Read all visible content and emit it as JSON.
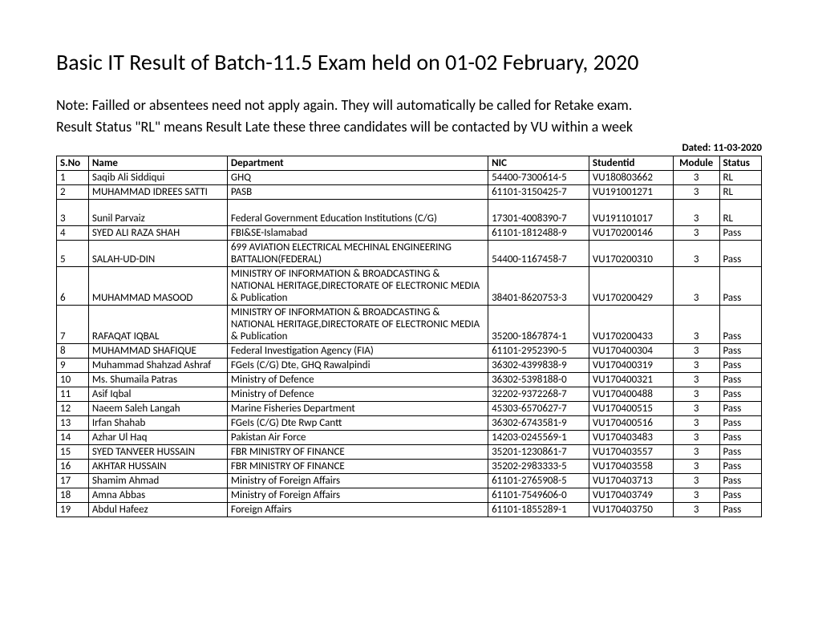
{
  "title": "Basic IT Result of Batch-11.5 Exam held on 01-02  February, 2020",
  "note_line1": "Note: Failled or absentees need not apply again.  They will automatically be called for Retake exam.",
  "note_line2": "Result Status  \"RL\" means Result Late these three candidates will be contacted by VU within a week",
  "dated_label": "Dated: 11-03-2020",
  "columns": {
    "sno": "S.No",
    "name": "Name",
    "department": "Department",
    "nic": "NIC",
    "studentid": "Studentid",
    "module": "Module",
    "status": "Status"
  },
  "rows": [
    {
      "sno": "1",
      "name": "Saqib Ali Siddiqui",
      "dept": "GHQ",
      "nic": "54400-7300614-5",
      "sid": "VU180803662",
      "module": "3",
      "status": "RL",
      "spacer_above": false,
      "tall": 0
    },
    {
      "sno": "2",
      "name": "MUHAMMAD IDREES SATTI",
      "dept": "PASB",
      "nic": "61101-3150425-7",
      "sid": "VU191001271",
      "module": "3",
      "status": "RL",
      "spacer_above": false,
      "tall": 0
    },
    {
      "sno": "3",
      "name": "Sunil Parvaiz",
      "dept": "Federal Government Education Institutions (C/G)",
      "nic": "17301-4008390-7",
      "sid": "VU191101017",
      "module": "3",
      "status": "RL",
      "spacer_above": true,
      "tall": 0
    },
    {
      "sno": "4",
      "name": "SYED ALI RAZA SHAH",
      "dept": "FBI&SE-Islamabad",
      "nic": "61101-1812488-9",
      "sid": "VU170200146",
      "module": "3",
      "status": "Pass",
      "spacer_above": false,
      "tall": 0
    },
    {
      "sno": "5",
      "name": "SALAH-UD-DIN",
      "dept": "699 AVIATION ELECTRICAL MECHINAL ENGINEERING BATTALION(FEDERAL)",
      "nic": "54400-1167458-7",
      "sid": "VU170200310",
      "module": "3",
      "status": "Pass",
      "spacer_above": false,
      "tall": 2
    },
    {
      "sno": "6",
      "name": "MUHAMMAD MASOOD",
      "dept": "MINISTRY OF INFORMATION & BROADCASTING & NATIONAL HERITAGE,DIRECTORATE OF ELECTRONIC MEDIA & Publication",
      "nic": "38401-8620753-3",
      "sid": "VU170200429",
      "module": "3",
      "status": "Pass",
      "spacer_above": false,
      "tall": 3
    },
    {
      "sno": "7",
      "name": "RAFAQAT IQBAL",
      "dept": "MINISTRY OF INFORMATION & BROADCASTING & NATIONAL HERITAGE,DIRECTORATE OF ELECTRONIC MEDIA & Publication",
      "nic": "35200-1867874-1",
      "sid": "VU170200433",
      "module": "3",
      "status": "Pass",
      "spacer_above": false,
      "tall": 3
    },
    {
      "sno": "8",
      "name": "MUHAMMAD SHAFIQUE",
      "dept": "Federal Investigation Agency (FIA)",
      "nic": "61101-2952390-5",
      "sid": "VU170400304",
      "module": "3",
      "status": "Pass",
      "spacer_above": false,
      "tall": 0
    },
    {
      "sno": "9",
      "name": "Muhammad Shahzad Ashraf",
      "dept": "FGeIs (C/G) Dte, GHQ Rawalpindi",
      "nic": "36302-4399838-9",
      "sid": "VU170400319",
      "module": "3",
      "status": "Pass",
      "spacer_above": false,
      "tall": 0
    },
    {
      "sno": "10",
      "name": "Ms. Shumaila Patras",
      "dept": "Ministry of Defence",
      "nic": "36302-5398188-0",
      "sid": "VU170400321",
      "module": "3",
      "status": "Pass",
      "spacer_above": false,
      "tall": 0
    },
    {
      "sno": "11",
      "name": "Asif Iqbal",
      "dept": "Ministry of Defence",
      "nic": "32202-9372268-7",
      "sid": "VU170400488",
      "module": "3",
      "status": "Pass",
      "spacer_above": false,
      "tall": 0
    },
    {
      "sno": "12",
      "name": "Naeem Saleh Langah",
      "dept": "Marine Fisheries Department",
      "nic": "45303-6570627-7",
      "sid": "VU170400515",
      "module": "3",
      "status": "Pass",
      "spacer_above": false,
      "tall": 0
    },
    {
      "sno": "13",
      "name": "Irfan Shahab",
      "dept": "FGeIs (C/G) Dte Rwp Cantt",
      "nic": "36302-6743581-9",
      "sid": "VU170400516",
      "module": "3",
      "status": "Pass",
      "spacer_above": false,
      "tall": 0
    },
    {
      "sno": "14",
      "name": "Azhar Ul Haq",
      "dept": "Pakistan Air Force",
      "nic": "14203-0245569-1",
      "sid": "VU170403483",
      "module": "3",
      "status": "Pass",
      "spacer_above": false,
      "tall": 0
    },
    {
      "sno": "15",
      "name": "SYED TANVEER HUSSAIN",
      "dept": "FBR MINISTRY OF FINANCE",
      "nic": "35201-1230861-7",
      "sid": "VU170403557",
      "module": "3",
      "status": "Pass",
      "spacer_above": false,
      "tall": 0
    },
    {
      "sno": "16",
      "name": "AKHTAR HUSSAIN",
      "dept": "FBR MINISTRY OF FINANCE",
      "nic": "35202-2983333-5",
      "sid": "VU170403558",
      "module": "3",
      "status": "Pass",
      "spacer_above": false,
      "tall": 0
    },
    {
      "sno": "17",
      "name": "Shamim Ahmad",
      "dept": "Ministry of Foreign Affairs",
      "nic": "61101-2765908-5",
      "sid": "VU170403713",
      "module": "3",
      "status": "Pass",
      "spacer_above": false,
      "tall": 0
    },
    {
      "sno": "18",
      "name": "Amna Abbas",
      "dept": "Ministry of Foreign Affairs",
      "nic": "61101-7549606-0",
      "sid": "VU170403749",
      "module": "3",
      "status": "Pass",
      "spacer_above": false,
      "tall": 0
    },
    {
      "sno": "19",
      "name": "Abdul Hafeez",
      "dept": "Foreign Affairs",
      "nic": "61101-1855289-1",
      "sid": "VU170403750",
      "module": "3",
      "status": "Pass",
      "spacer_above": false,
      "tall": 0
    }
  ],
  "styling": {
    "background_color": "#ffffff",
    "text_color": "#000000",
    "border_color": "#000000",
    "title_fontsize": 28,
    "note_fontsize": 18,
    "table_fontsize": 13,
    "dated_fontsize": 13,
    "font_family": "Calibri",
    "column_widths": {
      "sno": 38,
      "name": 165,
      "dept": 310,
      "nic": 120,
      "studentid": 100,
      "module": 55,
      "status": 50
    }
  }
}
